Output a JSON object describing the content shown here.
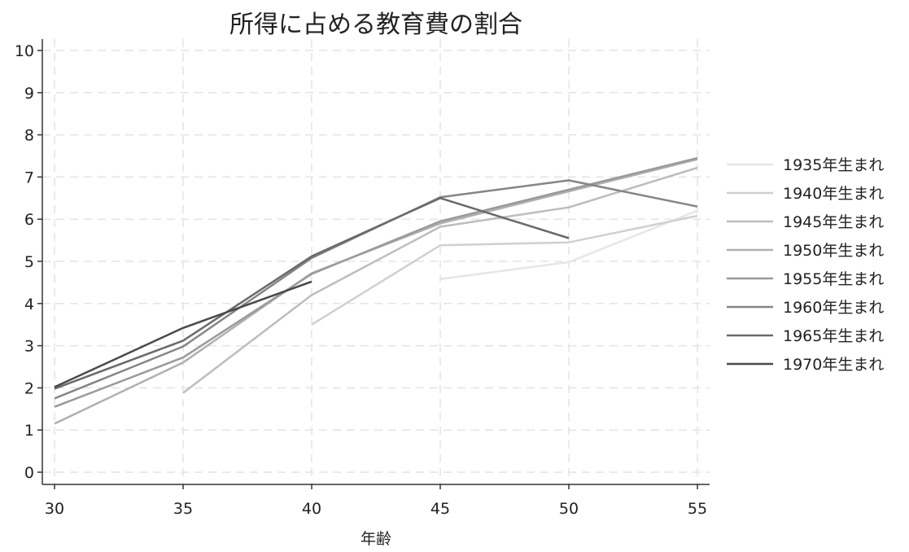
{
  "chart_data": {
    "type": "line",
    "title": "所得に占める教育費の割合",
    "xlabel": "年齢",
    "ylabel": "",
    "xlim": [
      30,
      55
    ],
    "ylim": [
      0,
      10
    ],
    "x_ticks": [
      30,
      35,
      40,
      45,
      50,
      55
    ],
    "y_ticks": [
      0,
      1,
      2,
      3,
      4,
      5,
      6,
      7,
      8,
      9,
      10
    ],
    "grid": true,
    "legend_position": "right",
    "series": [
      {
        "name": "1935年生まれ",
        "color": "#e6e6e6",
        "points": [
          [
            45,
            4.58
          ],
          [
            50,
            4.98
          ],
          [
            55,
            6.2
          ]
        ]
      },
      {
        "name": "1940年生まれ",
        "color": "#d0d0d0",
        "points": [
          [
            40,
            3.5
          ],
          [
            45,
            5.38
          ],
          [
            50,
            5.45
          ],
          [
            55,
            6.08
          ]
        ]
      },
      {
        "name": "1945年生まれ",
        "color": "#bdbdbd",
        "points": [
          [
            35,
            1.88
          ],
          [
            40,
            4.2
          ],
          [
            45,
            5.82
          ],
          [
            50,
            6.28
          ],
          [
            55,
            7.22
          ]
        ]
      },
      {
        "name": "1950年生まれ",
        "color": "#b0b0b0",
        "points": [
          [
            30,
            1.15
          ],
          [
            35,
            2.6
          ],
          [
            40,
            4.72
          ],
          [
            45,
            5.9
          ],
          [
            55,
            7.42
          ]
        ]
      },
      {
        "name": "1955年生まれ",
        "color": "#9a9a9a",
        "points": [
          [
            30,
            1.55
          ],
          [
            35,
            2.72
          ],
          [
            40,
            4.7
          ],
          [
            45,
            5.95
          ],
          [
            55,
            7.45
          ]
        ]
      },
      {
        "name": "1960年生まれ",
        "color": "#858585",
        "points": [
          [
            30,
            1.75
          ],
          [
            35,
            2.98
          ],
          [
            40,
            5.08
          ],
          [
            45,
            6.52
          ],
          [
            50,
            6.92
          ],
          [
            55,
            6.3
          ]
        ]
      },
      {
        "name": "1965年生まれ",
        "color": "#6a6a6a",
        "points": [
          [
            30,
            1.98
          ],
          [
            35,
            3.12
          ],
          [
            40,
            5.12
          ],
          [
            45,
            6.5
          ],
          [
            50,
            5.55
          ]
        ]
      },
      {
        "name": "1970年生まれ",
        "color": "#4a4a4a",
        "points": [
          [
            30,
            2.02
          ],
          [
            35,
            3.42
          ],
          [
            40,
            4.52
          ]
        ]
      }
    ]
  }
}
